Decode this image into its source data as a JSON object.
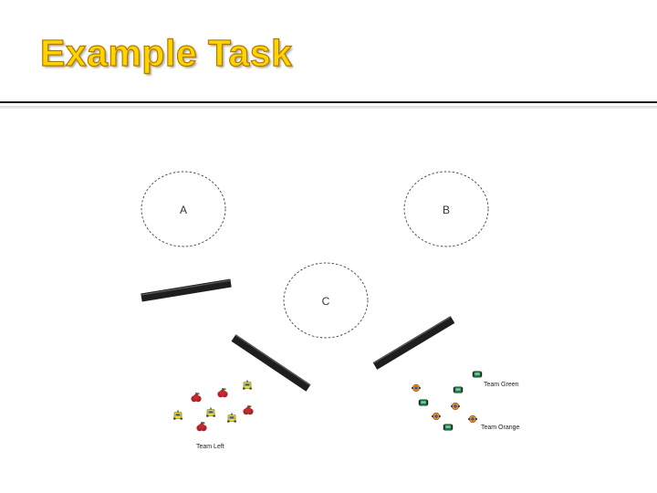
{
  "slide": {
    "title": "Example Task"
  },
  "diagram": {
    "zones": [
      {
        "label": "A"
      },
      {
        "label": "B"
      },
      {
        "label": "C"
      }
    ],
    "teams": [
      {
        "label": "Team Left",
        "robot_icon": "yellow-robot-icon",
        "apple_icon": "red-apple-icon"
      },
      {
        "label": "Team Green",
        "robot_icon": "green-robot-icon"
      },
      {
        "label": "Team Orange",
        "robot_icon": "orange-robot-icon"
      }
    ],
    "colors": {
      "title_fill": "#ffd400",
      "title_outline": "#b07a00",
      "wall": "#1e1e1e",
      "apple": "#b3202a",
      "yellow_robot": "#f2dc1e",
      "green_robot": "#1f7a4a",
      "orange_robot": "#f08a24",
      "robot_accent": "#2b5fb8"
    }
  }
}
